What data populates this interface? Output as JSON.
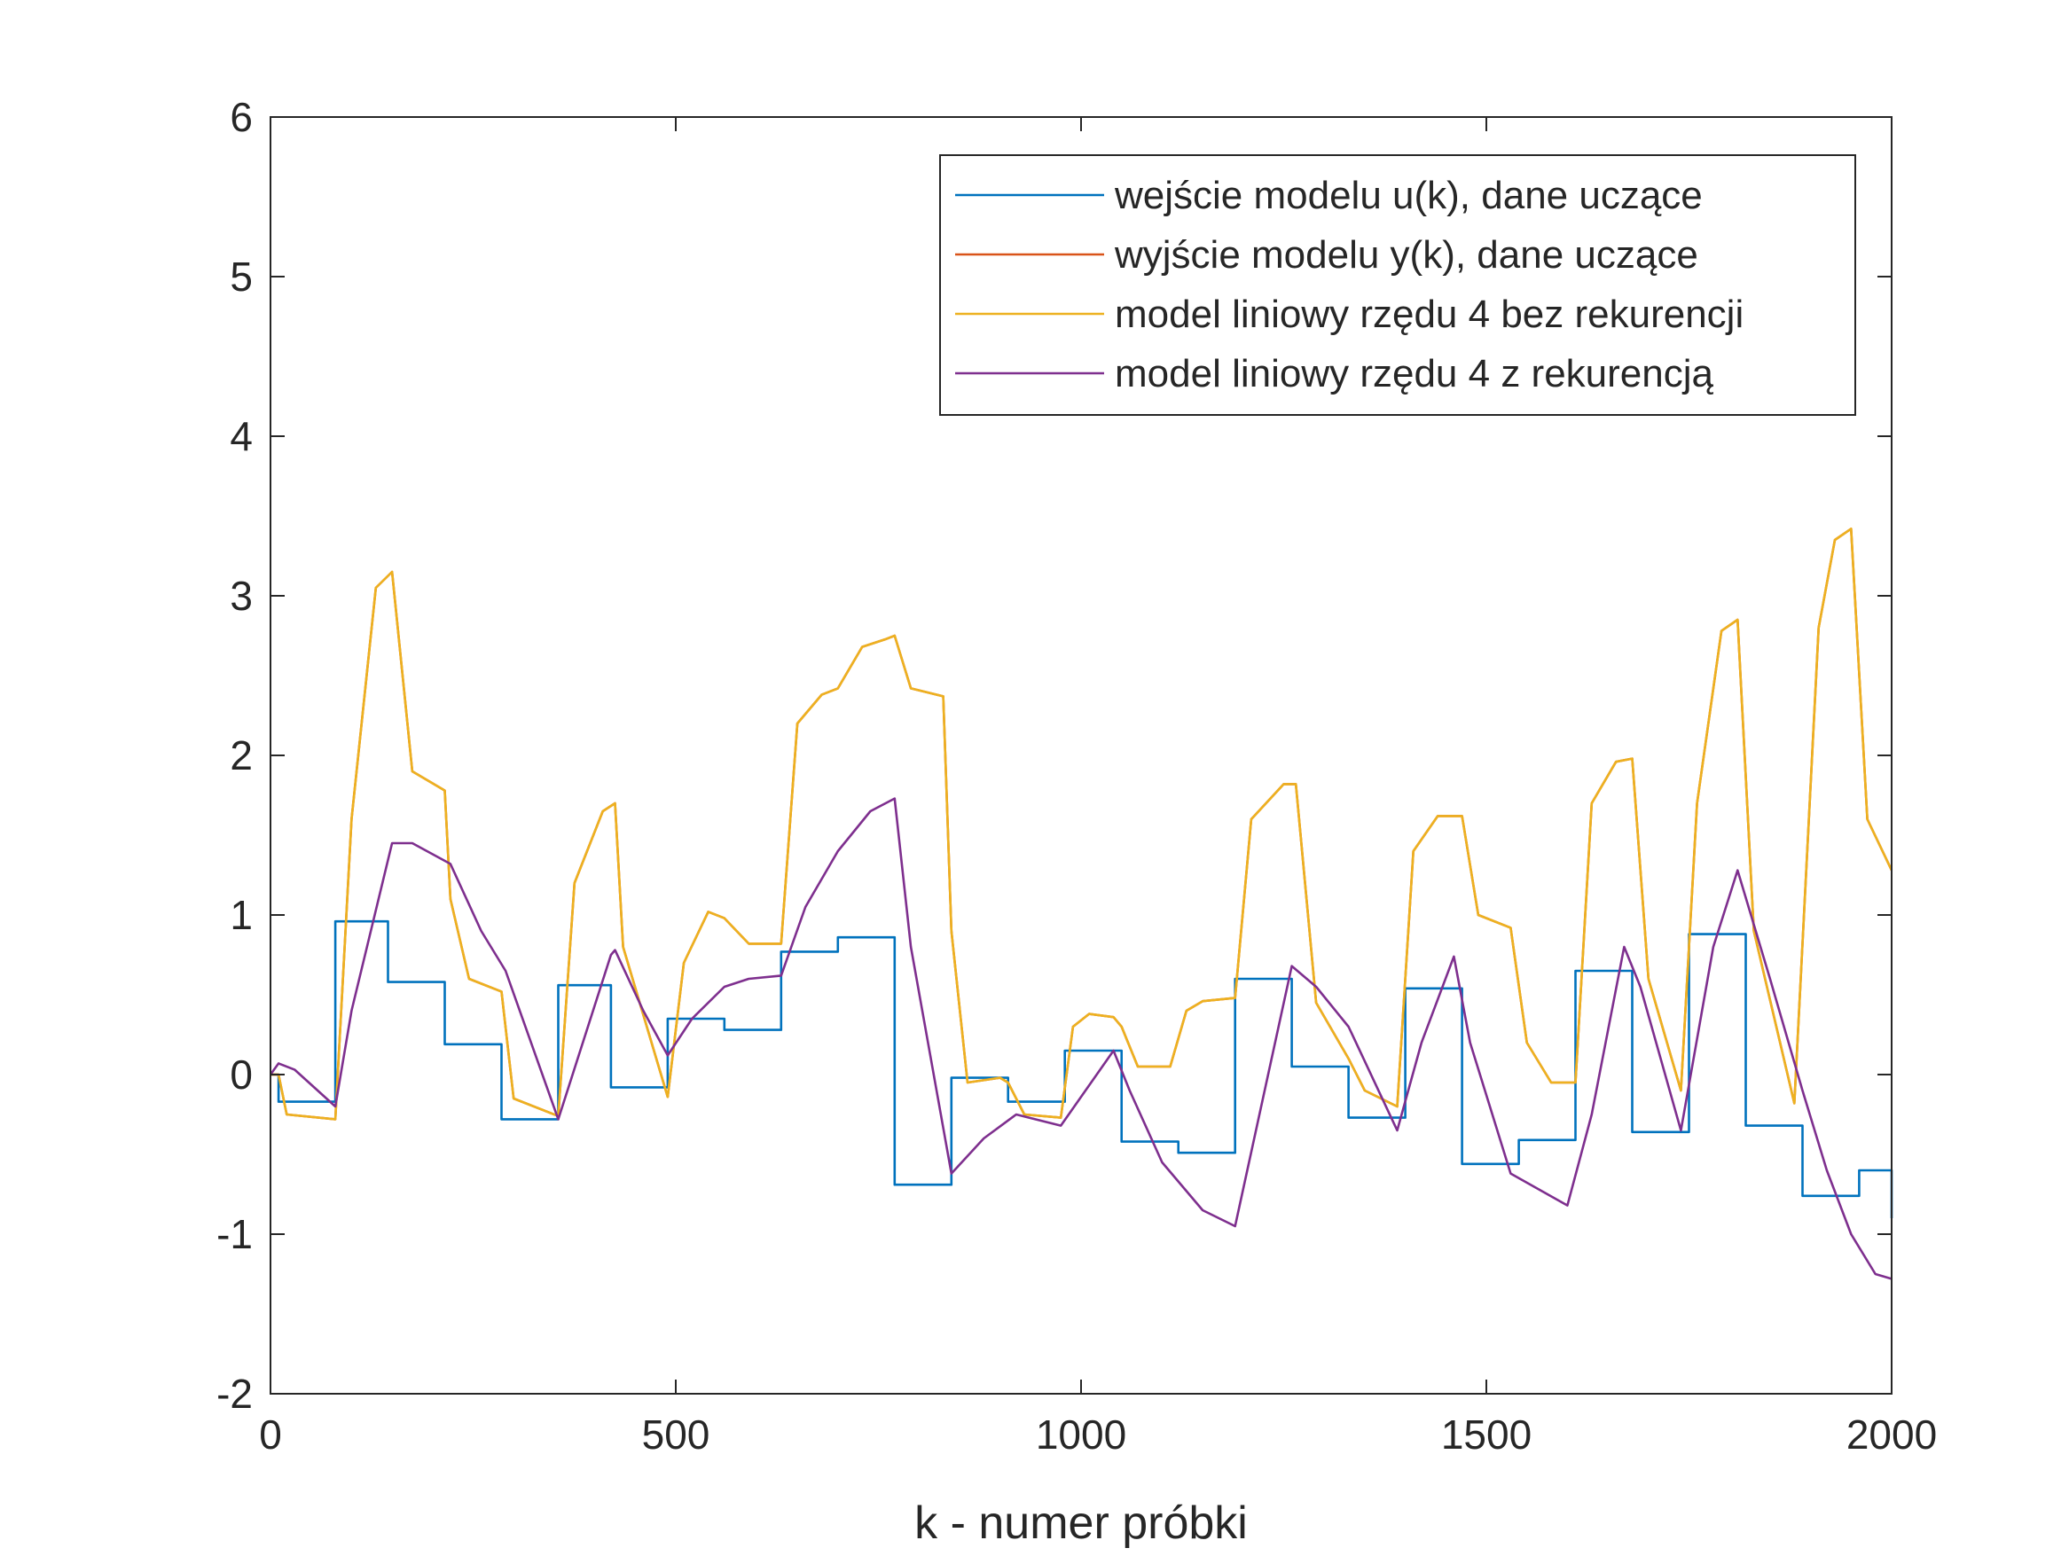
{
  "chart_data": {
    "type": "line",
    "title": "",
    "xlabel": "k - numer próbki",
    "ylabel": "",
    "xlim": [
      0,
      2000
    ],
    "ylim": [
      -2,
      6
    ],
    "xticks": [
      0,
      500,
      1000,
      1500,
      2000
    ],
    "xtick_labels": [
      "0",
      "500",
      "1000",
      "1500",
      "2000"
    ],
    "yticks": [
      -2,
      -1,
      0,
      1,
      2,
      3,
      4,
      5,
      6
    ],
    "ytick_labels": [
      "-2",
      "-1",
      "0",
      "1",
      "2",
      "3",
      "4",
      "5",
      "6"
    ],
    "grid": false,
    "legend_position": "top-right",
    "series": [
      {
        "name": "wejście modelu u(k), dane uczące",
        "color": "#0072BD",
        "style": "step",
        "x": [
          0,
          10,
          80,
          145,
          215,
          285,
          355,
          420,
          490,
          560,
          630,
          700,
          770,
          840,
          910,
          980,
          1050,
          1120,
          1190,
          1260,
          1330,
          1400,
          1470,
          1540,
          1610,
          1680,
          1750,
          1820,
          1890,
          1960,
          2000
        ],
        "values": [
          0,
          -0.17,
          0.96,
          0.58,
          0.19,
          -0.28,
          0.56,
          -0.08,
          0.35,
          0.28,
          0.77,
          0.86,
          -0.69,
          -0.02,
          -0.17,
          0.15,
          -0.42,
          -0.49,
          0.6,
          0.05,
          -0.27,
          0.54,
          -0.56,
          -0.41,
          0.65,
          -0.36,
          0.88,
          -0.32,
          -0.76,
          -0.6,
          -0.9
        ]
      },
      {
        "name": "wyjście modelu y(k), dane uczące",
        "color": "#D95319",
        "x": [
          0,
          10,
          20,
          80,
          100,
          130,
          150,
          175,
          215,
          222,
          245,
          285,
          300,
          355,
          375,
          410,
          425,
          435,
          490,
          510,
          540,
          560,
          590,
          630,
          650,
          680,
          700,
          730,
          760,
          770,
          790,
          830,
          840,
          860,
          900,
          910,
          930,
          975,
          990,
          1010,
          1040,
          1050,
          1070,
          1110,
          1130,
          1150,
          1190,
          1210,
          1250,
          1265,
          1290,
          1330,
          1350,
          1390,
          1410,
          1440,
          1470,
          1490,
          1530,
          1550,
          1580,
          1610,
          1630,
          1660,
          1680,
          1700,
          1740,
          1760,
          1790,
          1810,
          1830,
          1880,
          1910,
          1930,
          1950,
          1970,
          2000
        ],
        "values": [
          0,
          0,
          -0.25,
          -0.28,
          1.6,
          3.05,
          3.15,
          1.9,
          1.78,
          1.1,
          0.6,
          0.52,
          -0.15,
          -0.26,
          1.2,
          1.65,
          1.7,
          0.8,
          -0.14,
          0.7,
          1.02,
          0.98,
          0.82,
          0.82,
          2.2,
          2.38,
          2.42,
          2.68,
          2.73,
          2.75,
          2.42,
          2.37,
          0.9,
          -0.05,
          -0.02,
          -0.05,
          -0.25,
          -0.27,
          0.3,
          0.38,
          0.36,
          0.3,
          0.05,
          0.05,
          0.4,
          0.46,
          0.48,
          1.6,
          1.82,
          1.82,
          0.45,
          0.1,
          -0.1,
          -0.2,
          1.4,
          1.62,
          1.62,
          1.0,
          0.92,
          0.2,
          -0.05,
          -0.05,
          1.7,
          1.96,
          1.98,
          0.6,
          -0.1,
          1.7,
          2.78,
          2.85,
          0.9,
          -0.18,
          2.8,
          3.35,
          3.42,
          1.6,
          1.28
        ]
      },
      {
        "name": "model liniowy rzędu 4 bez rekurencji",
        "color": "#EDB120",
        "x": [
          0,
          10,
          20,
          80,
          100,
          130,
          150,
          175,
          215,
          222,
          245,
          285,
          300,
          355,
          375,
          410,
          425,
          435,
          490,
          510,
          540,
          560,
          590,
          630,
          650,
          680,
          700,
          730,
          760,
          770,
          790,
          830,
          840,
          860,
          900,
          910,
          930,
          975,
          990,
          1010,
          1040,
          1050,
          1070,
          1110,
          1130,
          1150,
          1190,
          1210,
          1250,
          1265,
          1290,
          1330,
          1350,
          1390,
          1410,
          1440,
          1470,
          1490,
          1530,
          1550,
          1580,
          1610,
          1630,
          1660,
          1680,
          1700,
          1740,
          1760,
          1790,
          1810,
          1830,
          1880,
          1910,
          1930,
          1950,
          1970,
          2000
        ],
        "values": [
          0,
          0,
          -0.25,
          -0.28,
          1.6,
          3.05,
          3.15,
          1.9,
          1.78,
          1.1,
          0.6,
          0.52,
          -0.15,
          -0.26,
          1.2,
          1.65,
          1.7,
          0.8,
          -0.14,
          0.7,
          1.02,
          0.98,
          0.82,
          0.82,
          2.2,
          2.38,
          2.42,
          2.68,
          2.73,
          2.75,
          2.42,
          2.37,
          0.9,
          -0.05,
          -0.02,
          -0.05,
          -0.25,
          -0.27,
          0.3,
          0.38,
          0.36,
          0.3,
          0.05,
          0.05,
          0.4,
          0.46,
          0.48,
          1.6,
          1.82,
          1.82,
          0.45,
          0.1,
          -0.1,
          -0.2,
          1.4,
          1.62,
          1.62,
          1.0,
          0.92,
          0.2,
          -0.05,
          -0.05,
          1.7,
          1.96,
          1.98,
          0.6,
          -0.1,
          1.7,
          2.78,
          2.85,
          0.9,
          -0.18,
          2.8,
          3.35,
          3.42,
          1.6,
          1.28
        ]
      },
      {
        "name": "model liniowy rzędu 4 z rekurencją",
        "color": "#7E2F8E",
        "x": [
          0,
          10,
          30,
          80,
          100,
          150,
          175,
          222,
          260,
          290,
          355,
          420,
          425,
          460,
          490,
          520,
          560,
          590,
          630,
          660,
          700,
          740,
          770,
          790,
          840,
          880,
          920,
          975,
          1040,
          1060,
          1100,
          1150,
          1190,
          1260,
          1290,
          1330,
          1390,
          1420,
          1460,
          1480,
          1530,
          1600,
          1630,
          1670,
          1690,
          1740,
          1780,
          1810,
          1850,
          1890,
          1920,
          1950,
          1980,
          2000
        ],
        "values": [
          0,
          0.07,
          0.03,
          -0.2,
          0.4,
          1.45,
          1.45,
          1.32,
          0.9,
          0.65,
          -0.28,
          0.75,
          0.78,
          0.4,
          0.12,
          0.35,
          0.55,
          0.6,
          0.62,
          1.05,
          1.4,
          1.65,
          1.73,
          0.8,
          -0.62,
          -0.4,
          -0.25,
          -0.32,
          0.15,
          -0.1,
          -0.55,
          -0.85,
          -0.95,
          0.68,
          0.55,
          0.3,
          -0.35,
          0.2,
          0.74,
          0.2,
          -0.62,
          -0.82,
          -0.25,
          0.8,
          0.55,
          -0.35,
          0.8,
          1.28,
          0.6,
          -0.1,
          -0.6,
          -1.0,
          -1.25,
          -1.28
        ]
      }
    ]
  }
}
